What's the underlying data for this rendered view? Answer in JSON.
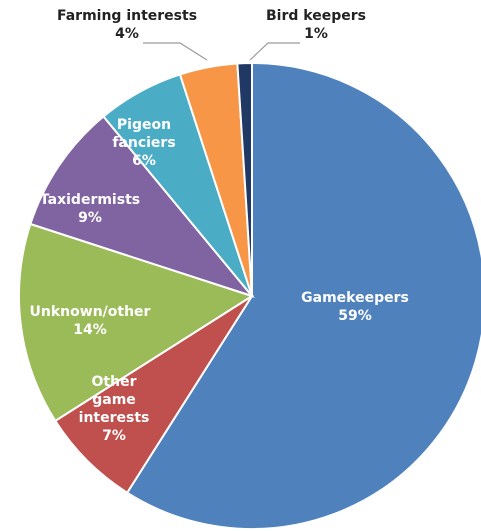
{
  "chart_data": {
    "type": "pie",
    "title": "",
    "start_angle_deg": 0,
    "direction": "clockwise",
    "slices": [
      {
        "label": "Gamekeepers",
        "value_label": "59%",
        "value": 59,
        "color": "#4f81bd",
        "label_placement": "inside"
      },
      {
        "label": "Other game interests",
        "label_lines": [
          "Other",
          "game",
          "interests"
        ],
        "value_label": "7%",
        "value": 7,
        "color": "#c0504d",
        "label_placement": "inside"
      },
      {
        "label": "Unknown/other",
        "value_label": "14%",
        "value": 14,
        "color": "#9bbb59",
        "label_placement": "inside"
      },
      {
        "label": "Taxidermists",
        "value_label": "9%",
        "value": 9,
        "color": "#8064a2",
        "label_placement": "inside"
      },
      {
        "label": "Pigeon fanciers",
        "label_lines": [
          "Pigeon",
          "fanciers"
        ],
        "value_label": "6%",
        "value": 6,
        "color": "#4bacc6",
        "label_placement": "inside"
      },
      {
        "label": "Farming interests",
        "value_label": "4%",
        "value": 4,
        "color": "#f79646",
        "label_placement": "outside"
      },
      {
        "label": "Bird keepers",
        "value_label": "1%",
        "value": 1,
        "color": "#1f3864",
        "label_placement": "outside"
      }
    ]
  }
}
